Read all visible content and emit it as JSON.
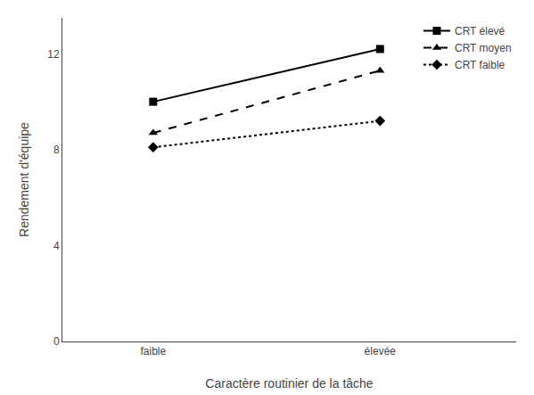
{
  "chart_data": {
    "type": "line",
    "categories": [
      "faible",
      "élevée"
    ],
    "series": [
      {
        "name": "CRT élevé",
        "color": "#000000",
        "values": [
          10.0,
          12.2
        ],
        "line_style": "solid",
        "marker": "square"
      },
      {
        "name": "CRT moyen",
        "color": "#000000",
        "values": [
          8.7,
          11.3
        ],
        "line_style": "dashed",
        "marker": "triangle"
      },
      {
        "name": "CRT faible",
        "color": "#000000",
        "values": [
          8.1,
          9.2
        ],
        "line_style": "dotted",
        "marker": "diamond"
      }
    ],
    "xlabel": "Caractère routinier de la tâche",
    "ylabel": "Rendement d'équipe",
    "ylim": [
      0,
      13.5
    ],
    "yticks": [
      0,
      4,
      8,
      12
    ],
    "grid": false,
    "legend": "upper right"
  }
}
